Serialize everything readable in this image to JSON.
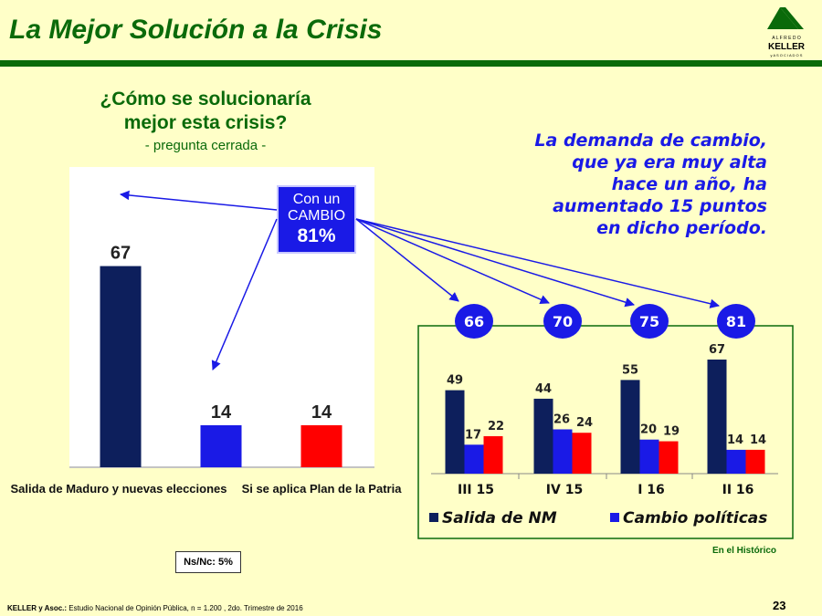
{
  "header": {
    "title": "La Mejor Solución a la Crisis",
    "logo": {
      "top": "A L F R E D O",
      "name": "KELLER",
      "bottom": "y  A S O C I A D O S"
    }
  },
  "question": {
    "title_line1": "¿Cómo se solucionaría",
    "title_line2": "mejor esta crisis?",
    "subtitle": "- pregunta cerrada -"
  },
  "headline": {
    "line1": "La demanda de cambio,",
    "line2": "que ya era muy alta",
    "line3": "hace un año, ha",
    "line4": "aumentado 15 puntos",
    "line5": "en dicho período."
  },
  "change_box": {
    "line1": "Con un",
    "line2": "CAMBIO",
    "line3": "81%"
  },
  "nsnc": "Ns/Nc: 5%",
  "historico": "En el Histórico",
  "footer": {
    "source_bold": "KELLER y Asoc.:",
    "source_text": " Estudio Nacional de Opinión Pública, n = 1.200 , 2do. Trimestre de 2016"
  },
  "page_number": "23",
  "colors": {
    "navy": "#0d1f5c",
    "blue": "#1a1ae6",
    "red": "#ff0000",
    "green": "#0a6a0a",
    "background": "#ffffc8"
  },
  "chart_data": [
    {
      "type": "bar",
      "categories": [
        "Salida de Maduro y nuevas elecciones",
        "",
        "Si se aplica Plan de la Patria"
      ],
      "values": [
        67,
        14,
        14
      ],
      "bar_colors": [
        "#0d1f5c",
        "#1a1ae6",
        "#ff0000"
      ],
      "ylim": [
        0,
        100
      ]
    },
    {
      "type": "bar",
      "categories": [
        "III 15",
        "IV 15",
        "I 16",
        "II 16"
      ],
      "totals": [
        "66",
        "70",
        "75",
        "81"
      ],
      "series": [
        {
          "name": "Salida de NM",
          "values": [
            49,
            44,
            55,
            67
          ],
          "color": "#0d1f5c"
        },
        {
          "name": "Cambio políticas",
          "values": [
            17,
            26,
            20,
            14
          ],
          "color": "#1a1ae6"
        },
        {
          "values": [
            22,
            24,
            19,
            14
          ],
          "color": "#ff0000"
        }
      ],
      "ylim": [
        0,
        80
      ],
      "legend_position": "bottom"
    }
  ]
}
